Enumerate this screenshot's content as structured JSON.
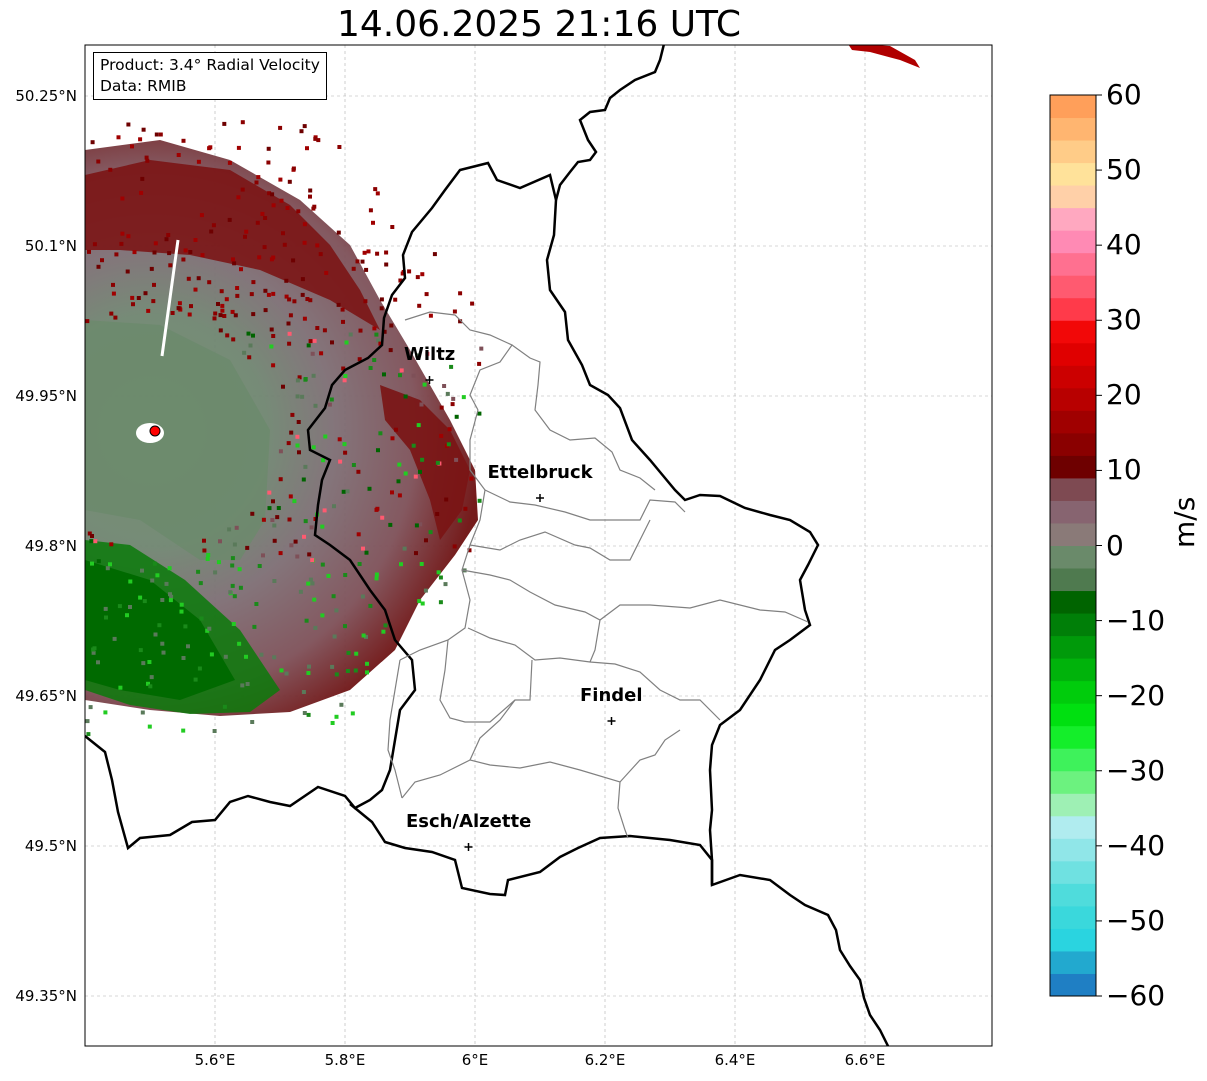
{
  "title": "14.06.2025 21:16 UTC",
  "info_box": {
    "product": "Product: 3.4° Radial Velocity",
    "data_source": "Data: RMIB"
  },
  "map": {
    "extent": {
      "lon_min": 5.4,
      "lon_max": 6.8,
      "lat_min": 49.3,
      "lat_max": 50.3
    },
    "lat_ticks": [
      {
        "value": 50.25,
        "label": "50.25°N"
      },
      {
        "value": 50.1,
        "label": "50.1°N"
      },
      {
        "value": 49.95,
        "label": "49.95°N"
      },
      {
        "value": 49.8,
        "label": "49.8°N"
      },
      {
        "value": 49.65,
        "label": "49.65°N"
      },
      {
        "value": 49.5,
        "label": "49.5°N"
      },
      {
        "value": 49.35,
        "label": "49.35°N"
      }
    ],
    "lon_ticks": [
      {
        "value": 5.6,
        "label": "5.6°E"
      },
      {
        "value": 5.8,
        "label": "5.8°E"
      },
      {
        "value": 6.0,
        "label": "6°E"
      },
      {
        "value": 6.2,
        "label": "6.2°E"
      },
      {
        "value": 6.4,
        "label": "6.4°E"
      },
      {
        "value": 6.6,
        "label": "6.6°E"
      }
    ],
    "cities": [
      {
        "name": "Wiltz",
        "lon": 5.93,
        "lat": 49.966
      },
      {
        "name": "Ettelbruck",
        "lon": 6.1,
        "lat": 49.848
      },
      {
        "name": "Findel",
        "lon": 6.21,
        "lat": 49.625
      },
      {
        "name": "Esch/Alzette",
        "lon": 5.99,
        "lat": 49.499
      }
    ],
    "radar_site": {
      "lon": 5.505,
      "lat": 49.914,
      "marker_color": "#ff0000"
    }
  },
  "colorbar": {
    "unit": "m/s",
    "min": -60,
    "max": 60,
    "ticks": [
      {
        "value": 60,
        "label": "60"
      },
      {
        "value": 50,
        "label": "50"
      },
      {
        "value": 40,
        "label": "40"
      },
      {
        "value": 30,
        "label": "30"
      },
      {
        "value": 20,
        "label": "20"
      },
      {
        "value": 10,
        "label": "10"
      },
      {
        "value": 0,
        "label": "0"
      },
      {
        "value": -10,
        "label": "−10"
      },
      {
        "value": -20,
        "label": "−20"
      },
      {
        "value": -30,
        "label": "−30"
      },
      {
        "value": -40,
        "label": "−40"
      },
      {
        "value": -50,
        "label": "−50"
      },
      {
        "value": -60,
        "label": "−60"
      }
    ],
    "stops": [
      {
        "from": -60,
        "to": -57,
        "color": "#1f7fc4"
      },
      {
        "from": -57,
        "to": -54,
        "color": "#22a9cf"
      },
      {
        "from": -54,
        "to": -51,
        "color": "#2ad4e0"
      },
      {
        "from": -51,
        "to": -48,
        "color": "#3ad8dc"
      },
      {
        "from": -48,
        "to": -45,
        "color": "#4fdcdc"
      },
      {
        "from": -45,
        "to": -42,
        "color": "#6fe1e1"
      },
      {
        "from": -42,
        "to": -39,
        "color": "#90e6e8"
      },
      {
        "from": -39,
        "to": -36,
        "color": "#b0ecef"
      },
      {
        "from": -36,
        "to": -33,
        "color": "#9ef0b4"
      },
      {
        "from": -33,
        "to": -30,
        "color": "#6cf27f"
      },
      {
        "from": -30,
        "to": -27,
        "color": "#3ef25b"
      },
      {
        "from": -27,
        "to": -24,
        "color": "#14ee2a"
      },
      {
        "from": -24,
        "to": -21,
        "color": "#00e010"
      },
      {
        "from": -21,
        "to": -18,
        "color": "#00cc0c"
      },
      {
        "from": -18,
        "to": -15,
        "color": "#00b30b"
      },
      {
        "from": -15,
        "to": -12,
        "color": "#009a0a"
      },
      {
        "from": -12,
        "to": -9,
        "color": "#007f08"
      },
      {
        "from": -9,
        "to": -6,
        "color": "#006400"
      },
      {
        "from": -6,
        "to": -3,
        "color": "#4f7a4f"
      },
      {
        "from": -3,
        "to": 0,
        "color": "#6a8a6a"
      },
      {
        "from": 0,
        "to": 3,
        "color": "#8a7a78"
      },
      {
        "from": 3,
        "to": 6,
        "color": "#876470"
      },
      {
        "from": 6,
        "to": 9,
        "color": "#7e4a52"
      },
      {
        "from": 9,
        "to": 12,
        "color": "#6e0000"
      },
      {
        "from": 12,
        "to": 15,
        "color": "#8a0000"
      },
      {
        "from": 15,
        "to": 18,
        "color": "#a00000"
      },
      {
        "from": 18,
        "to": 21,
        "color": "#b80000"
      },
      {
        "from": 21,
        "to": 24,
        "color": "#cc0000"
      },
      {
        "from": 24,
        "to": 27,
        "color": "#e00000"
      },
      {
        "from": 27,
        "to": 30,
        "color": "#f20808"
      },
      {
        "from": 30,
        "to": 33,
        "color": "#ff3a4a"
      },
      {
        "from": 33,
        "to": 36,
        "color": "#ff5a70"
      },
      {
        "from": 36,
        "to": 39,
        "color": "#ff7090"
      },
      {
        "from": 39,
        "to": 42,
        "color": "#ff8ab4"
      },
      {
        "from": 42,
        "to": 45,
        "color": "#ffa8c0"
      },
      {
        "from": 45,
        "to": 48,
        "color": "#ffd0a8"
      },
      {
        "from": 48,
        "to": 51,
        "color": "#ffe29a"
      },
      {
        "from": 51,
        "to": 54,
        "color": "#ffcc88"
      },
      {
        "from": 54,
        "to": 57,
        "color": "#ffb570"
      },
      {
        "from": 57,
        "to": 60,
        "color": "#ff9f5a"
      }
    ]
  }
}
